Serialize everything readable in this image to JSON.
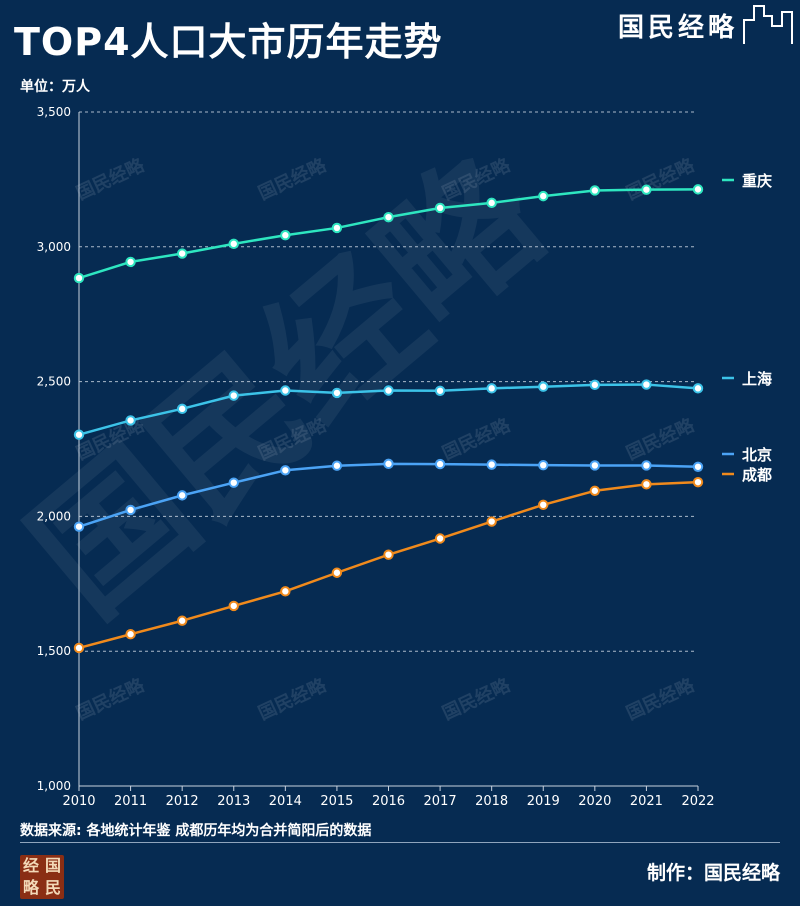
{
  "header": {
    "title": "TOP4人口大市历年走势",
    "brand": "国民经略"
  },
  "unit_label": "单位：万人",
  "footer": {
    "source": "数据来源: 各地统计年鉴 成都历年均为合并简阳后的数据",
    "maker": "制作：国民经略",
    "seal_chars": [
      "经",
      "国",
      "略",
      "民"
    ]
  },
  "watermark": "国民经略",
  "colors": {
    "background": "#062b52",
    "chongqing": "#2ee6c0",
    "shanghai": "#3cc3e8",
    "beijing": "#4ba3f5",
    "chengdu": "#f08a1c",
    "grid": "#c8d3df"
  },
  "chart_data": {
    "type": "line",
    "title": "TOP4人口大市历年走势",
    "ylabel": "万人",
    "ylim": [
      1000,
      3500
    ],
    "yticks": [
      1000,
      1500,
      2000,
      2500,
      3000,
      3500
    ],
    "ytick_labels": [
      "1,000",
      "1,500",
      "2,000",
      "2,500",
      "3,000",
      "3,500"
    ],
    "grid": true,
    "x": [
      "2010",
      "2011",
      "2012",
      "2013",
      "2014",
      "2015",
      "2016",
      "2017",
      "2018",
      "2019",
      "2020",
      "2021",
      "2022"
    ],
    "series": [
      {
        "name": "重庆",
        "key": "chongqing",
        "values": [
          2884,
          2944,
          2975,
          3011,
          3043,
          3070,
          3110,
          3144,
          3163,
          3188,
          3209,
          3212,
          3213
        ]
      },
      {
        "name": "上海",
        "key": "shanghai",
        "values": [
          2303,
          2356,
          2399,
          2448,
          2467,
          2458,
          2467,
          2466,
          2475,
          2481,
          2488,
          2489,
          2475
        ]
      },
      {
        "name": "北京",
        "key": "beijing",
        "values": [
          1962,
          2024,
          2078,
          2125,
          2171,
          2188,
          2195,
          2194,
          2192,
          2190,
          2189,
          2189,
          2184
        ]
      },
      {
        "name": "成都",
        "key": "chengdu",
        "values": [
          1512,
          1563,
          1613,
          1668,
          1722,
          1791,
          1858,
          1918,
          1981,
          2043,
          2095,
          2119,
          2127
        ]
      }
    ]
  }
}
